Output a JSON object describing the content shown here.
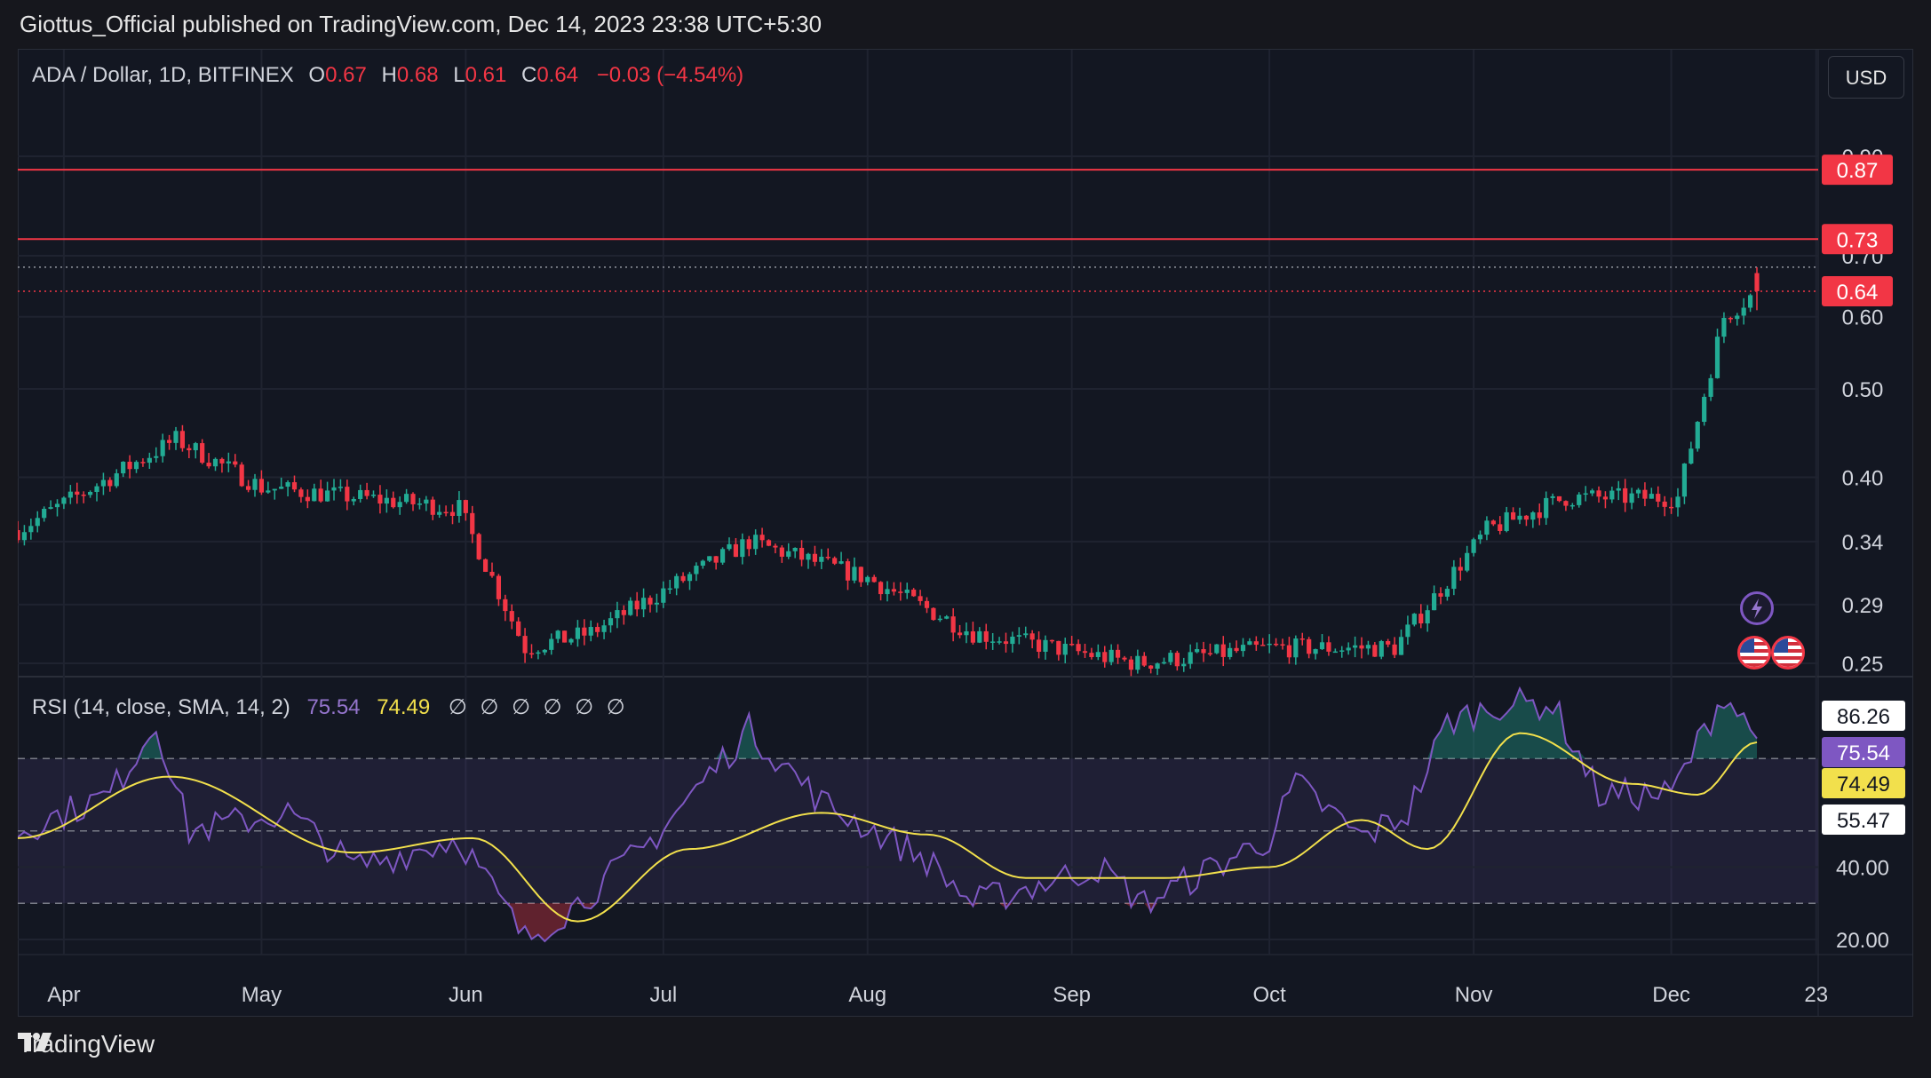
{
  "header": {
    "published": "Giottus_Official published on TradingView.com, Dec 14, 2023 23:38 UTC+5:30"
  },
  "currency_button": "USD",
  "legend": {
    "symbol": "ADA / Dollar, 1D, BITFINEX",
    "o_label": "O",
    "o_value": "0.67",
    "h_label": "H",
    "h_value": "0.68",
    "l_label": "L",
    "l_value": "0.61",
    "c_label": "C",
    "c_value": "0.64",
    "change": "−0.03 (−4.54%)"
  },
  "rsi_legend": {
    "label": "RSI (14, close, SMA, 14, 2)",
    "rsi": "75.54",
    "sma": "74.49",
    "placeholders": "∅ ∅ ∅ ∅ ∅ ∅"
  },
  "footer": {
    "brand": "TradingView"
  },
  "colors": {
    "up": "#22ab94",
    "down": "#f23645",
    "rsi": "#7e57c2",
    "rsi_sma": "#f2e04c",
    "background": "#131722"
  },
  "icons": [
    "lightning-icon",
    "us-flag-icon",
    "tradingview-logo-icon"
  ],
  "chart_data": [
    {
      "type": "candlestick",
      "title": "ADA / Dollar, 1D, BITFINEX",
      "y_scale": "log",
      "price_ticks": [
        "0.90",
        "0.70",
        "0.60",
        "0.50",
        "0.40",
        "0.34",
        "0.29",
        "0.25"
      ],
      "x_ticks": [
        "Apr",
        "May",
        "Jun",
        "Jul",
        "Aug",
        "Sep",
        "Oct",
        "Nov",
        "Dec",
        "23"
      ],
      "horizontal_lines": [
        {
          "value": 0.87,
          "label": "0.87",
          "style": "solid"
        },
        {
          "value": 0.73,
          "label": "0.73",
          "style": "solid"
        },
        {
          "value": 0.68,
          "style": "dotted"
        },
        {
          "value": 0.64,
          "label": "0.64",
          "style": "dotted",
          "kind": "last price"
        }
      ],
      "last_ohlc": {
        "open": 0.67,
        "high": 0.68,
        "low": 0.61,
        "close": 0.64
      },
      "approx_close_path": [
        {
          "date": "2023-03-25",
          "close": 0.35
        },
        {
          "date": "2023-04-18",
          "close": 0.44
        },
        {
          "date": "2023-05-01",
          "close": 0.39
        },
        {
          "date": "2023-05-31",
          "close": 0.37
        },
        {
          "date": "2023-06-10",
          "close": 0.26
        },
        {
          "date": "2023-06-20",
          "close": 0.27
        },
        {
          "date": "2023-07-14",
          "close": 0.34
        },
        {
          "date": "2023-08-01",
          "close": 0.31
        },
        {
          "date": "2023-08-17",
          "close": 0.27
        },
        {
          "date": "2023-09-11",
          "close": 0.25
        },
        {
          "date": "2023-10-01",
          "close": 0.26
        },
        {
          "date": "2023-10-20",
          "close": 0.26
        },
        {
          "date": "2023-11-03",
          "close": 0.35
        },
        {
          "date": "2023-11-15",
          "close": 0.38
        },
        {
          "date": "2023-12-02",
          "close": 0.38
        },
        {
          "date": "2023-12-09",
          "close": 0.6
        },
        {
          "date": "2023-12-14",
          "close": 0.64
        }
      ]
    },
    {
      "type": "line",
      "title": "RSI (14, close, SMA, 14, 2)",
      "y_ticks": [
        "40.00",
        "20.00"
      ],
      "bands": {
        "upper": 70,
        "middle": 50,
        "lower": 30
      },
      "labels": [
        {
          "value": 86.26,
          "label": "86.26"
        },
        {
          "value": 75.54,
          "label": "75.54",
          "series": "RSI"
        },
        {
          "value": 74.49,
          "label": "74.49",
          "series": "SMA"
        },
        {
          "value": 55.47,
          "label": "55.47"
        }
      ],
      "series": [
        {
          "values_by_date": [
            [
              "2023-03-25",
              50
            ],
            [
              "2023-04-08",
              60
            ],
            [
              "2023-04-15",
              80
            ],
            [
              "2023-04-20",
              50
            ],
            [
              "2023-05-05",
              55
            ],
            [
              "2023-05-15",
              40
            ],
            [
              "2023-05-31",
              48
            ],
            [
              "2023-06-10",
              20
            ],
            [
              "2023-06-18",
              30
            ],
            [
              "2023-06-28",
              45
            ],
            [
              "2023-07-14",
              78
            ],
            [
              "2023-07-25",
              58
            ],
            [
              "2023-08-10",
              42
            ],
            [
              "2023-08-17",
              30
            ],
            [
              "2023-09-05",
              40
            ],
            [
              "2023-09-12",
              30
            ],
            [
              "2023-10-01",
              48
            ],
            [
              "2023-10-05",
              63
            ],
            [
              "2023-10-15",
              48
            ],
            [
              "2023-10-22",
              55
            ],
            [
              "2023-10-28",
              80
            ],
            [
              "2023-11-05",
              85
            ],
            [
              "2023-11-13",
              85
            ],
            [
              "2023-11-20",
              60
            ],
            [
              "2023-12-01",
              60
            ],
            [
              "2023-12-09",
              88
            ],
            [
              "2023-12-14",
              75.54
            ]
          ]
        },
        {
          "values_by_date": [
            [
              "2023-03-25",
              48
            ],
            [
              "2023-04-17",
              65
            ],
            [
              "2023-05-15",
              44
            ],
            [
              "2023-06-02",
              48
            ],
            [
              "2023-06-18",
              25
            ],
            [
              "2023-07-05",
              45
            ],
            [
              "2023-07-25",
              55
            ],
            [
              "2023-08-10",
              49
            ],
            [
              "2023-08-25",
              37
            ],
            [
              "2023-09-15",
              37
            ],
            [
              "2023-10-01",
              40
            ],
            [
              "2023-10-15",
              53
            ],
            [
              "2023-10-25",
              45
            ],
            [
              "2023-11-08",
              77
            ],
            [
              "2023-11-25",
              63
            ],
            [
              "2023-12-05",
              60
            ],
            [
              "2023-12-14",
              74.49
            ]
          ]
        }
      ]
    }
  ]
}
